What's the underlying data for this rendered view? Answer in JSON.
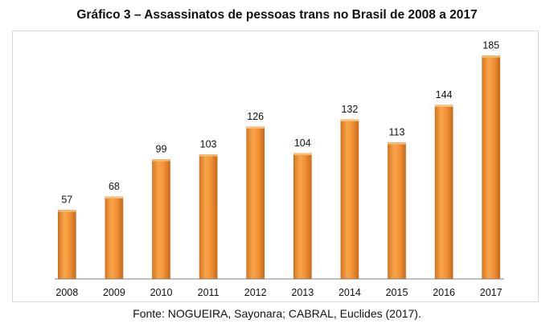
{
  "chart_data": {
    "type": "bar",
    "title": "Gráfico 3 – Assassinatos de pessoas trans no Brasil de 2008 a 2017",
    "categories": [
      "2008",
      "2009",
      "2010",
      "2011",
      "2012",
      "2013",
      "2014",
      "2015",
      "2016",
      "2017"
    ],
    "values": [
      57,
      68,
      99,
      103,
      126,
      104,
      132,
      113,
      144,
      185
    ],
    "xlabel": "",
    "ylabel": "",
    "ylim": [
      0,
      200
    ],
    "grid": false,
    "legend": "none",
    "data_labels": true,
    "bar_color": "#f0902e",
    "bar_color_dark": "#c4671a"
  },
  "source": "Fonte: NOGUEIRA, Sayonara; CABRAL, Euclides (2017)."
}
